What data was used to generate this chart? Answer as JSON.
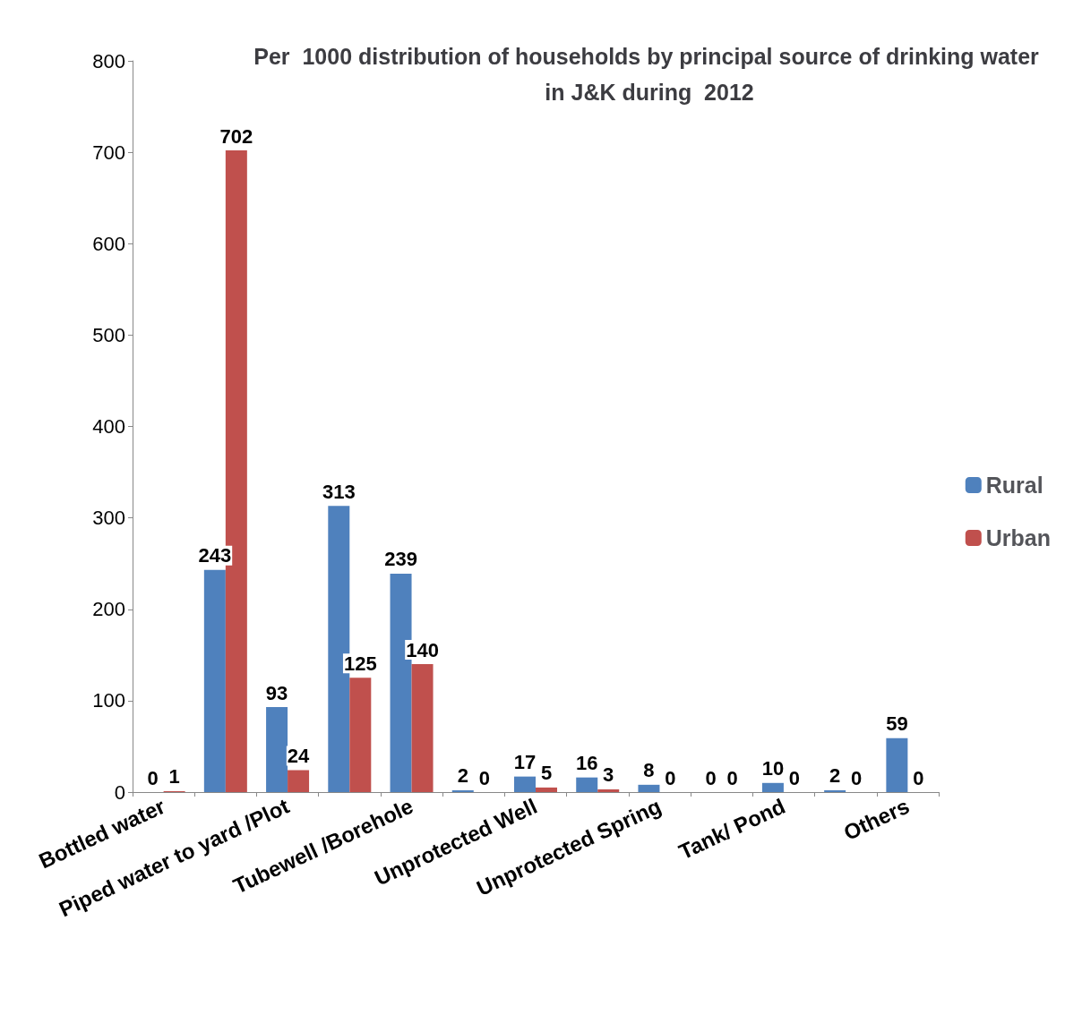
{
  "chart_data": {
    "type": "bar",
    "title": "Per  1000 distribution of households by principal source of drinking water in J&K during  2012",
    "categories": [
      "Bottled water",
      null,
      "Piped water to yard /Plot",
      null,
      "Tubewell /Borehole",
      null,
      "Unprotected Well",
      null,
      "Unprotected Spring",
      null,
      "Tank/ Pond",
      null,
      "Others"
    ],
    "series": [
      {
        "name": "Rural",
        "color": "#4f81bd",
        "values": [
          0,
          243,
          93,
          313,
          239,
          2,
          17,
          16,
          8,
          0,
          10,
          2,
          59
        ]
      },
      {
        "name": "Urban",
        "color": "#c0504d",
        "values": [
          1,
          702,
          24,
          125,
          140,
          0,
          5,
          3,
          0,
          0,
          0,
          0,
          0
        ]
      }
    ],
    "ylim": [
      0,
      800
    ],
    "yticks": [
      0,
      100,
      200,
      300,
      400,
      500,
      600,
      700,
      800
    ],
    "grid": false,
    "legend": "right",
    "data_labels": true
  }
}
